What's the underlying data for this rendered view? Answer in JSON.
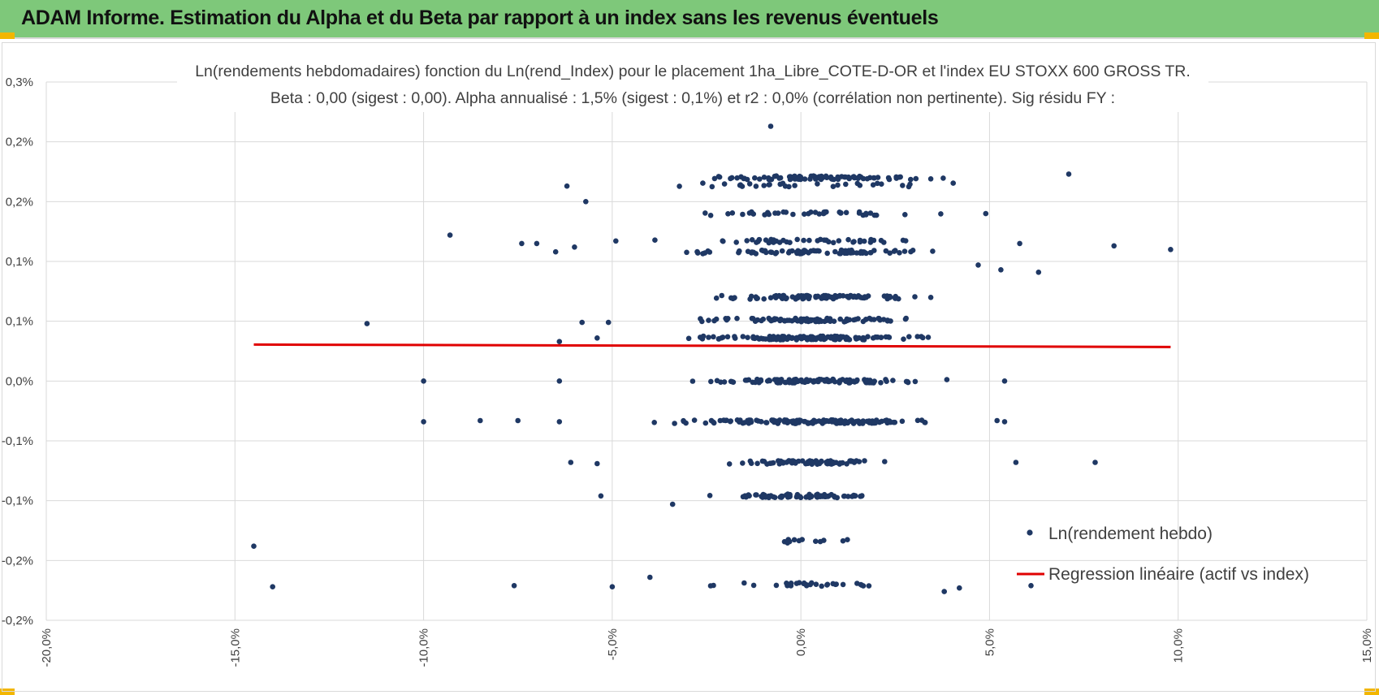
{
  "header": {
    "title": "ADAM Informe. Estimation du Alpha et du Beta par rapport à un index sans les revenus éventuels",
    "color": "#7ec87a"
  },
  "chart_data": {
    "type": "scatter",
    "title_line1": "Ln(rendements hebdomadaires) fonction du Ln(rend_Index) pour le placement 1ha_Libre_COTE-D-OR et l'index EU STOXX 600 GROSS TR.",
    "title_line2": "Beta : 0,00 (sigest : 0,00). Alpha annualisé : 1,5% (sigest : 0,1%) et r2 : 0,0% (corrélation non pertinente). Sig résidu FY :",
    "xlim": [
      -0.2,
      0.15
    ],
    "ylim": [
      -0.002,
      0.0025
    ],
    "x_tick_labels": [
      "-20,0%",
      "-15,0%",
      "-10,0%",
      "-5,0%",
      "0,0%",
      "5,0%",
      "10,0%",
      "15,0%"
    ],
    "y_tick_labels": [
      "0,3%",
      "0,2%",
      "0,2%",
      "0,1%",
      "0,1%",
      "0,0%",
      "-0,1%",
      "-0,1%",
      "-0,2%",
      "-0,2%"
    ],
    "grid": true,
    "legend_position": "bottom-right",
    "series": [
      {
        "name": "Ln(rendement hebdo)",
        "kind": "scatter",
        "color": "#1f3864"
      },
      {
        "name": "Regression linéaire (actif vs index)",
        "kind": "line",
        "color": "#e00000",
        "x": [
          -0.145,
          0.098
        ],
        "y": [
          0.000305,
          0.000285
        ]
      }
    ],
    "points": [
      [
        -0.008,
        0.00213
      ],
      [
        0.071,
        0.00173
      ],
      [
        -0.062,
        0.00163
      ],
      [
        -0.057,
        0.0015
      ],
      [
        -0.093,
        0.00122
      ],
      [
        -0.074,
        0.00115
      ],
      [
        -0.07,
        0.00115
      ],
      [
        -0.065,
        0.00108
      ],
      [
        -0.06,
        0.00112
      ],
      [
        0.058,
        0.00115
      ],
      [
        0.083,
        0.00113
      ],
      [
        0.098,
        0.0011
      ],
      [
        0.053,
        0.00093
      ],
      [
        0.063,
        0.00091
      ],
      [
        0.049,
        0.0014
      ],
      [
        0.047,
        0.00097
      ],
      [
        -0.115,
        0.00048
      ],
      [
        -0.058,
        0.00049
      ],
      [
        -0.051,
        0.00049
      ],
      [
        -0.064,
        0.00033
      ],
      [
        -0.054,
        0.00036
      ],
      [
        -0.1,
        0.0
      ],
      [
        -0.064,
        0.0
      ],
      [
        0.054,
        0.0
      ],
      [
        -0.1,
        -0.00034
      ],
      [
        -0.085,
        -0.00033
      ],
      [
        -0.075,
        -0.00033
      ],
      [
        -0.064,
        -0.00034
      ],
      [
        -0.061,
        -0.00068
      ],
      [
        -0.054,
        -0.00069
      ],
      [
        0.052,
        -0.00033
      ],
      [
        0.054,
        -0.00034
      ],
      [
        0.057,
        -0.00068
      ],
      [
        0.078,
        -0.00068
      ],
      [
        -0.053,
        -0.00096
      ],
      [
        -0.034,
        -0.00103
      ],
      [
        -0.145,
        -0.00138
      ],
      [
        -0.14,
        -0.00172
      ],
      [
        -0.076,
        -0.00171
      ],
      [
        -0.05,
        -0.00172
      ],
      [
        -0.04,
        -0.00164
      ],
      [
        0.061,
        -0.00171
      ],
      [
        0.038,
        -0.00176
      ],
      [
        0.042,
        -0.00173
      ]
    ]
  }
}
